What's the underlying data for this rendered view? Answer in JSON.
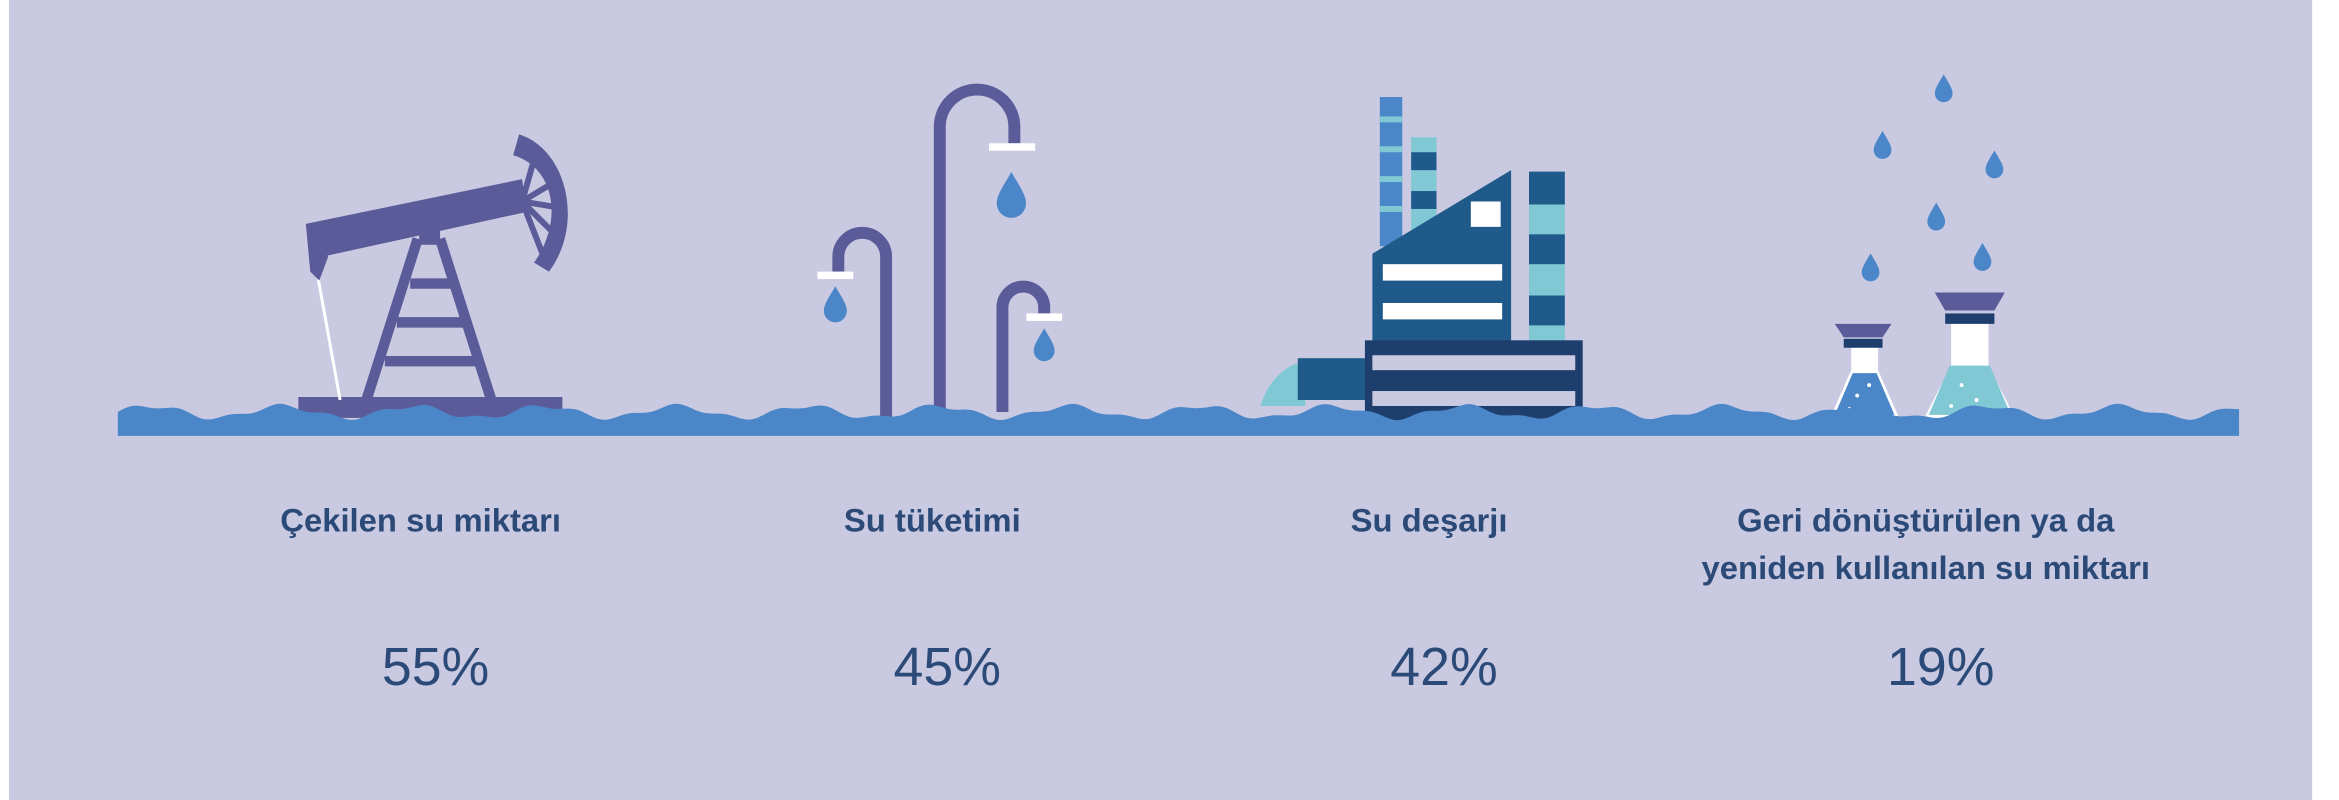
{
  "items": [
    {
      "label_lines": [
        "Çekilen su miktarı"
      ],
      "value": "55%"
    },
    {
      "label_lines": [
        "Su tüketimi"
      ],
      "value": "45%"
    },
    {
      "label_lines": [
        "Su deşarjı"
      ],
      "value": "42%"
    },
    {
      "label_lines": [
        "Geri dönüştürülen ya da",
        "yeniden kullanılan su miktarı"
      ],
      "value": "19%"
    }
  ]
}
